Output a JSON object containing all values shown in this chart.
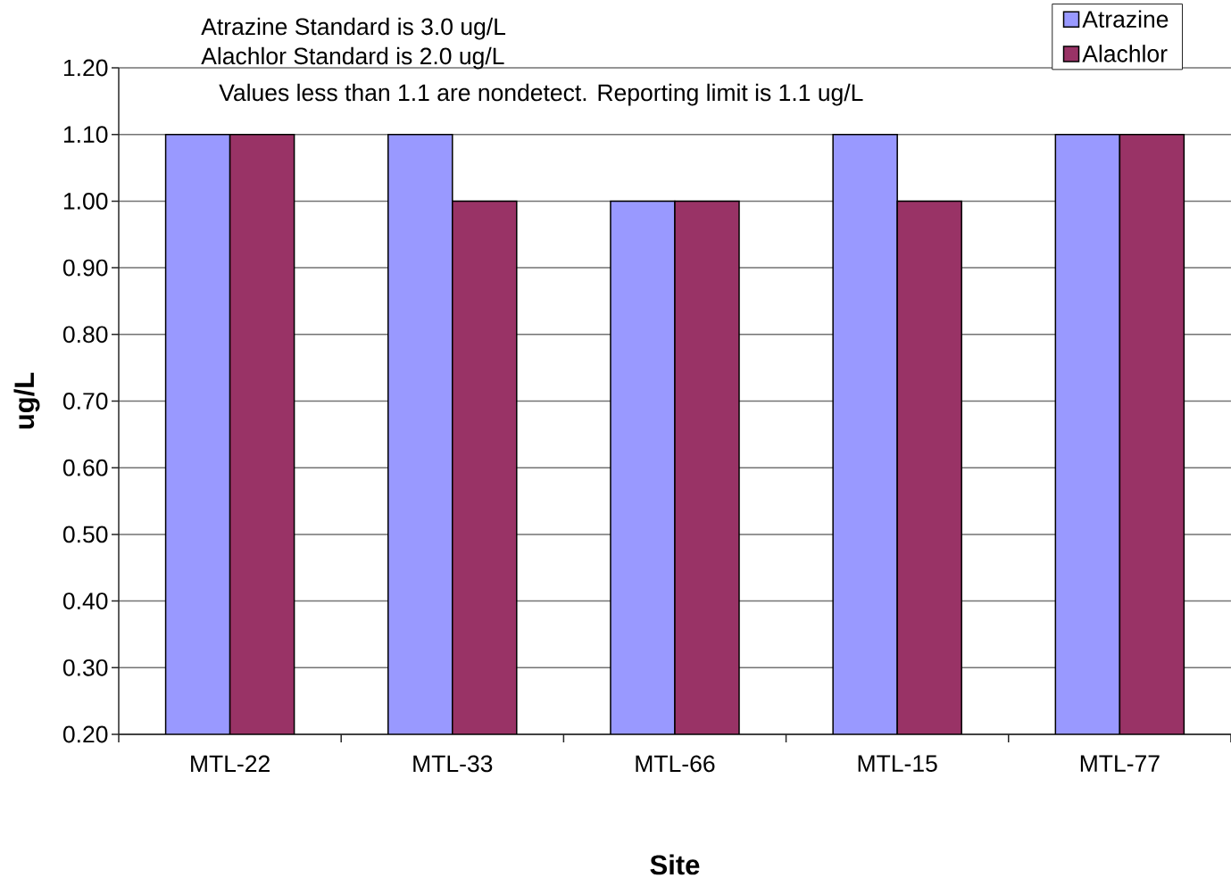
{
  "chart_data": {
    "type": "bar",
    "categories": [
      "MTL-22",
      "MTL-33",
      "MTL-66",
      "MTL-15",
      "MTL-77"
    ],
    "series": [
      {
        "name": "Atrazine",
        "color": "#9999ff",
        "values": [
          1.1,
          1.1,
          1.0,
          1.1,
          1.1
        ]
      },
      {
        "name": "Alachlor",
        "color": "#993366",
        "values": [
          1.1,
          1.0,
          1.0,
          1.0,
          1.1
        ]
      }
    ],
    "xlabel": "Site",
    "ylabel": "ug/L",
    "ylim": [
      0.2,
      1.2
    ],
    "yticks": [
      {
        "value": 0.2,
        "label": "0.20"
      },
      {
        "value": 0.3,
        "label": "0.30"
      },
      {
        "value": 0.4,
        "label": "0.40"
      },
      {
        "value": 0.5,
        "label": "0.50"
      },
      {
        "value": 0.6,
        "label": "0.60"
      },
      {
        "value": 0.7,
        "label": "0.70"
      },
      {
        "value": 0.8,
        "label": "0.80"
      },
      {
        "value": 0.9,
        "label": "0.90"
      },
      {
        "value": 1.0,
        "label": "1.00"
      },
      {
        "value": 1.1,
        "label": "1.10"
      },
      {
        "value": 1.2,
        "label": "1.20"
      }
    ],
    "grid": "y",
    "legend": "top right",
    "annotations": [
      "Atrazine Standard is 3.0 ug/L",
      "Alachlor Standard is 2.0 ug/L",
      "Values less than 1.1 are nondetect. Reporting limit is 1.1 ug/L"
    ]
  }
}
